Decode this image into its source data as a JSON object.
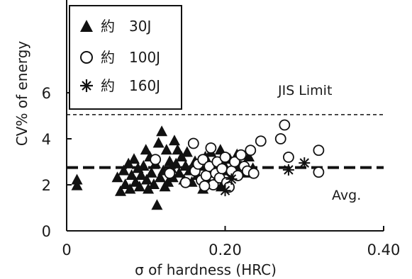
{
  "chart_data": {
    "type": "scatter",
    "title": "",
    "xlabel": "σ of hardness (HRC)",
    "ylabel": "CV% of energy",
    "xlim": [
      0,
      0.4
    ],
    "ylim": [
      0,
      6.8
    ],
    "x_ticks": [
      0,
      0.2,
      0.4
    ],
    "x_tick_labels": [
      "0",
      "0.20",
      "0.40"
    ],
    "y_ticks": [
      0,
      2,
      4,
      6
    ],
    "y_tick_labels": [
      "0",
      "2",
      "4",
      "6"
    ],
    "grid": false,
    "legend_position": "top-left",
    "series": [
      {
        "name": "約　30J",
        "marker": "triangle",
        "color": "#111111",
        "points": [
          [
            0.013,
            2.2
          ],
          [
            0.013,
            1.95
          ],
          [
            0.064,
            2.3
          ],
          [
            0.068,
            1.7
          ],
          [
            0.072,
            2.6
          ],
          [
            0.074,
            2.0
          ],
          [
            0.078,
            2.9
          ],
          [
            0.08,
            1.8
          ],
          [
            0.082,
            2.4
          ],
          [
            0.085,
            3.1
          ],
          [
            0.087,
            2.1
          ],
          [
            0.09,
            2.7
          ],
          [
            0.092,
            1.9
          ],
          [
            0.094,
            2.4
          ],
          [
            0.097,
            2.8
          ],
          [
            0.1,
            3.5
          ],
          [
            0.101,
            2.2
          ],
          [
            0.103,
            1.8
          ],
          [
            0.105,
            3.2
          ],
          [
            0.107,
            2.5
          ],
          [
            0.11,
            2.0
          ],
          [
            0.112,
            2.9
          ],
          [
            0.114,
            1.1
          ],
          [
            0.116,
            3.8
          ],
          [
            0.118,
            2.3
          ],
          [
            0.12,
            4.3
          ],
          [
            0.122,
            2.6
          ],
          [
            0.124,
            1.9
          ],
          [
            0.126,
            3.5
          ],
          [
            0.128,
            2.1
          ],
          [
            0.13,
            3.0
          ],
          [
            0.132,
            2.7
          ],
          [
            0.134,
            2.3
          ],
          [
            0.136,
            3.9
          ],
          [
            0.138,
            2.9
          ],
          [
            0.14,
            3.5
          ],
          [
            0.142,
            2.5
          ],
          [
            0.145,
            3.2
          ],
          [
            0.148,
            2.2
          ],
          [
            0.15,
            2.8
          ],
          [
            0.152,
            3.4
          ],
          [
            0.155,
            2.6
          ],
          [
            0.158,
            2.1
          ],
          [
            0.162,
            3.0
          ],
          [
            0.165,
            2.4
          ],
          [
            0.168,
            2.8
          ],
          [
            0.172,
            1.8
          ],
          [
            0.175,
            3.2
          ],
          [
            0.178,
            2.5
          ],
          [
            0.182,
            3.4
          ],
          [
            0.186,
            2.7
          ],
          [
            0.19,
            2.3
          ],
          [
            0.194,
            3.5
          ],
          [
            0.198,
            2.9
          ],
          [
            0.202,
            2.6
          ],
          [
            0.206,
            3.1
          ],
          [
            0.21,
            2.4
          ],
          [
            0.215,
            3.3
          ],
          [
            0.22,
            2.8
          ],
          [
            0.225,
            2.5
          ],
          [
            0.23,
            3.2
          ],
          [
            0.235,
            2.7
          ],
          [
            0.195,
            1.9
          ],
          [
            0.178,
            2.2
          ]
        ]
      },
      {
        "name": "約　100J",
        "marker": "circle",
        "color": "#111111",
        "points": [
          [
            0.112,
            3.1
          ],
          [
            0.13,
            2.5
          ],
          [
            0.15,
            2.1
          ],
          [
            0.16,
            3.8
          ],
          [
            0.162,
            2.6
          ],
          [
            0.166,
            2.9
          ],
          [
            0.17,
            2.2
          ],
          [
            0.172,
            3.1
          ],
          [
            0.176,
            2.4
          ],
          [
            0.18,
            2.8
          ],
          [
            0.182,
            3.6
          ],
          [
            0.185,
            2.0
          ],
          [
            0.188,
            2.5
          ],
          [
            0.19,
            3.0
          ],
          [
            0.193,
            2.3
          ],
          [
            0.196,
            2.7
          ],
          [
            0.2,
            3.2
          ],
          [
            0.202,
            2.1
          ],
          [
            0.205,
            1.9
          ],
          [
            0.208,
            2.6
          ],
          [
            0.212,
            3.0
          ],
          [
            0.216,
            2.4
          ],
          [
            0.22,
            3.3
          ],
          [
            0.224,
            2.8
          ],
          [
            0.228,
            2.6
          ],
          [
            0.232,
            3.5
          ],
          [
            0.236,
            2.5
          ],
          [
            0.245,
            3.9
          ],
          [
            0.27,
            4.0
          ],
          [
            0.275,
            4.6
          ],
          [
            0.28,
            3.2
          ],
          [
            0.318,
            3.5
          ],
          [
            0.318,
            2.55
          ],
          [
            0.174,
            1.95
          ]
        ]
      },
      {
        "name": "約　160J",
        "marker": "star",
        "color": "#111111",
        "points": [
          [
            0.2,
            1.75
          ],
          [
            0.208,
            2.25
          ],
          [
            0.28,
            2.65
          ],
          [
            0.3,
            2.95
          ]
        ]
      }
    ],
    "reference_lines": [
      {
        "name": "JIS Limit",
        "y": 5.05,
        "style": "dashed-thin"
      },
      {
        "name": "Avg.",
        "y": 2.75,
        "style": "dashed-thick"
      }
    ]
  }
}
